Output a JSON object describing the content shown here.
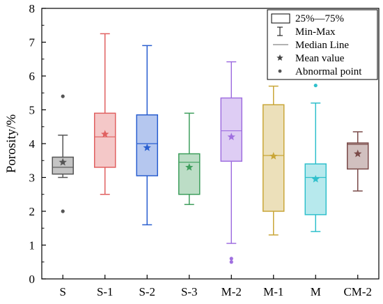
{
  "chart_data": {
    "type": "boxplot",
    "ylabel": "Porosity/%",
    "xlabel": "",
    "ylim": [
      0,
      8
    ],
    "yticks": [
      0,
      1,
      2,
      3,
      4,
      5,
      6,
      7,
      8
    ],
    "grid": false,
    "legend_position": "top-right",
    "legend": {
      "box_label": "25%—75%",
      "range_label": "Min-Max",
      "median_label": "Median Line",
      "mean_label": "Mean value",
      "outlier_label": "Abnormal point"
    },
    "categories": [
      "S",
      "S-1",
      "S-2",
      "S-3",
      "M-2",
      "M-1",
      "M",
      "CM-2"
    ],
    "series": [
      {
        "category": "S",
        "q1": 3.1,
        "median": 3.3,
        "q3": 3.6,
        "min": 3.0,
        "max": 4.25,
        "mean": 3.45,
        "outliers": [
          5.4,
          2.0
        ],
        "color": "#555555"
      },
      {
        "category": "S-1",
        "q1": 3.3,
        "median": 4.2,
        "q3": 4.9,
        "min": 2.5,
        "max": 7.25,
        "mean": 4.28,
        "outliers": [],
        "color": "#e06060"
      },
      {
        "category": "S-2",
        "q1": 3.05,
        "median": 4.0,
        "q3": 4.85,
        "min": 1.6,
        "max": 6.9,
        "mean": 3.88,
        "outliers": [],
        "color": "#2a5fd0"
      },
      {
        "category": "S-3",
        "q1": 2.5,
        "median": 3.45,
        "q3": 3.7,
        "min": 2.2,
        "max": 4.9,
        "mean": 3.3,
        "outliers": [],
        "color": "#3e9e5c"
      },
      {
        "category": "M-2",
        "q1": 3.48,
        "median": 4.38,
        "q3": 5.35,
        "min": 1.05,
        "max": 6.42,
        "mean": 4.2,
        "outliers": [
          0.6,
          0.5
        ],
        "color": "#a070e0"
      },
      {
        "category": "M-1",
        "q1": 2.0,
        "median": 3.65,
        "q3": 5.15,
        "min": 1.3,
        "max": 5.7,
        "mean": 3.63,
        "outliers": [],
        "color": "#c9a638"
      },
      {
        "category": "M",
        "q1": 1.9,
        "median": 3.0,
        "q3": 3.4,
        "min": 1.4,
        "max": 5.2,
        "mean": 2.95,
        "outliers": [
          5.72
        ],
        "color": "#30c0cc"
      },
      {
        "category": "CM-2",
        "q1": 3.25,
        "median": 3.98,
        "q3": 4.02,
        "min": 2.6,
        "max": 4.35,
        "mean": 3.7,
        "outliers": [],
        "color": "#7a4a48"
      }
    ]
  }
}
